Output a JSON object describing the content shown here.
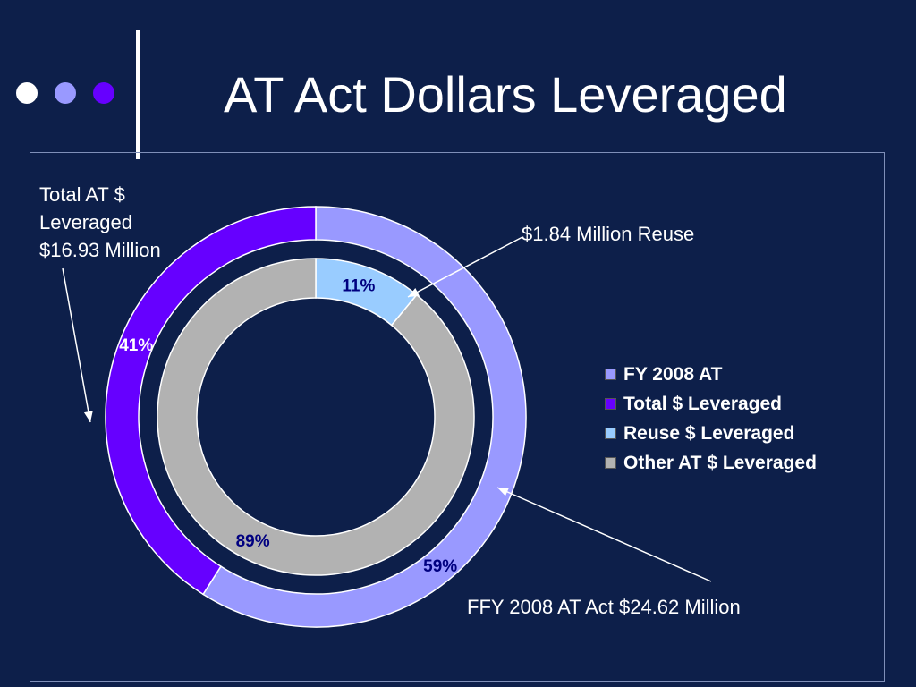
{
  "slide": {
    "title": "AT Act Dollars Leveraged",
    "bullet_colors": [
      "#ffffff",
      "#9999ff",
      "#6600ff"
    ]
  },
  "annotations": {
    "total_line1": "Total AT $",
    "total_line2": "Leveraged",
    "total_line3": "$16.93 Million",
    "reuse": "$1.84 Million Reuse",
    "ffy": "FFY 2008 AT Act $24.62 Million"
  },
  "chart_data": {
    "type": "doughnut",
    "legend_position": "right",
    "legend": [
      {
        "label": "FY 2008 AT",
        "color": "#9999ff"
      },
      {
        "label": "Total $ Leveraged",
        "color": "#6600ff"
      },
      {
        "label": "Reuse $ Leveraged",
        "color": "#99ccff"
      },
      {
        "label": "Other AT $ Leveraged",
        "color": "#b2b2b2"
      }
    ],
    "rings": [
      {
        "ring": "outer",
        "slices": [
          {
            "category": "FY 2008 AT",
            "value": 59,
            "label": "59%",
            "color": "#9999ff",
            "label_color": "#000080"
          },
          {
            "category": "Total $ Leveraged",
            "value": 41,
            "label": "41%",
            "color": "#6600ff",
            "label_color": "#ffffff"
          }
        ]
      },
      {
        "ring": "inner",
        "slices": [
          {
            "category": "Reuse $ Leveraged",
            "value": 11,
            "label": "11%",
            "color": "#99ccff",
            "label_color": "#000080"
          },
          {
            "category": "Other AT $ Leveraged",
            "value": 89,
            "label": "89%",
            "color": "#b2b2b2",
            "label_color": "#000080"
          }
        ]
      }
    ]
  }
}
